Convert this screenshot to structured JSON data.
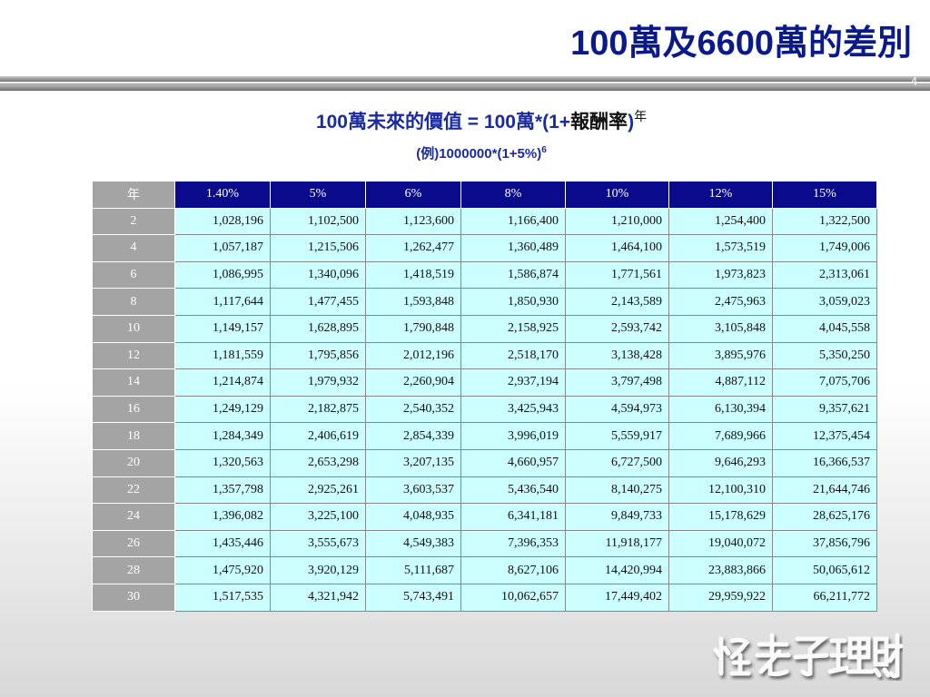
{
  "title": "100萬及6600萬的差別",
  "page_number": "4",
  "formula": {
    "left": "100萬未來的價值 = 100萬*(1+",
    "middle": "報酬率",
    "right": ")",
    "exponent": "年"
  },
  "example": {
    "text": "(例)1000000*(1+5%)",
    "exponent": "6"
  },
  "table": {
    "corner": "年",
    "headers": [
      "1.40%",
      "5%",
      "6%",
      "8%",
      "10%",
      "12%",
      "15%"
    ],
    "rows": [
      {
        "year": "2",
        "values": [
          "1,028,196",
          "1,102,500",
          "1,123,600",
          "1,166,400",
          "1,210,000",
          "1,254,400",
          "1,322,500"
        ]
      },
      {
        "year": "4",
        "values": [
          "1,057,187",
          "1,215,506",
          "1,262,477",
          "1,360,489",
          "1,464,100",
          "1,573,519",
          "1,749,006"
        ]
      },
      {
        "year": "6",
        "values": [
          "1,086,995",
          "1,340,096",
          "1,418,519",
          "1,586,874",
          "1,771,561",
          "1,973,823",
          "2,313,061"
        ]
      },
      {
        "year": "8",
        "values": [
          "1,117,644",
          "1,477,455",
          "1,593,848",
          "1,850,930",
          "2,143,589",
          "2,475,963",
          "3,059,023"
        ]
      },
      {
        "year": "10",
        "values": [
          "1,149,157",
          "1,628,895",
          "1,790,848",
          "2,158,925",
          "2,593,742",
          "3,105,848",
          "4,045,558"
        ]
      },
      {
        "year": "12",
        "values": [
          "1,181,559",
          "1,795,856",
          "2,012,196",
          "2,518,170",
          "3,138,428",
          "3,895,976",
          "5,350,250"
        ]
      },
      {
        "year": "14",
        "values": [
          "1,214,874",
          "1,979,932",
          "2,260,904",
          "2,937,194",
          "3,797,498",
          "4,887,112",
          "7,075,706"
        ]
      },
      {
        "year": "16",
        "values": [
          "1,249,129",
          "2,182,875",
          "2,540,352",
          "3,425,943",
          "4,594,973",
          "6,130,394",
          "9,357,621"
        ]
      },
      {
        "year": "18",
        "values": [
          "1,284,349",
          "2,406,619",
          "2,854,339",
          "3,996,019",
          "5,559,917",
          "7,689,966",
          "12,375,454"
        ]
      },
      {
        "year": "20",
        "values": [
          "1,320,563",
          "2,653,298",
          "3,207,135",
          "4,660,957",
          "6,727,500",
          "9,646,293",
          "16,366,537"
        ]
      },
      {
        "year": "22",
        "values": [
          "1,357,798",
          "2,925,261",
          "3,603,537",
          "5,436,540",
          "8,140,275",
          "12,100,310",
          "21,644,746"
        ]
      },
      {
        "year": "24",
        "values": [
          "1,396,082",
          "3,225,100",
          "4,048,935",
          "6,341,181",
          "9,849,733",
          "15,178,629",
          "28,625,176"
        ]
      },
      {
        "year": "26",
        "values": [
          "1,435,446",
          "3,555,673",
          "4,549,383",
          "7,396,353",
          "11,918,177",
          "19,040,072",
          "37,856,796"
        ]
      },
      {
        "year": "28",
        "values": [
          "1,475,920",
          "3,920,129",
          "5,111,687",
          "8,627,106",
          "14,420,994",
          "23,883,866",
          "50,065,612"
        ]
      },
      {
        "year": "30",
        "values": [
          "1,517,535",
          "4,321,942",
          "5,743,491",
          "10,062,657",
          "17,449,402",
          "29,959,922",
          "66,211,772"
        ]
      }
    ]
  },
  "logo_text": "怪老子理財"
}
